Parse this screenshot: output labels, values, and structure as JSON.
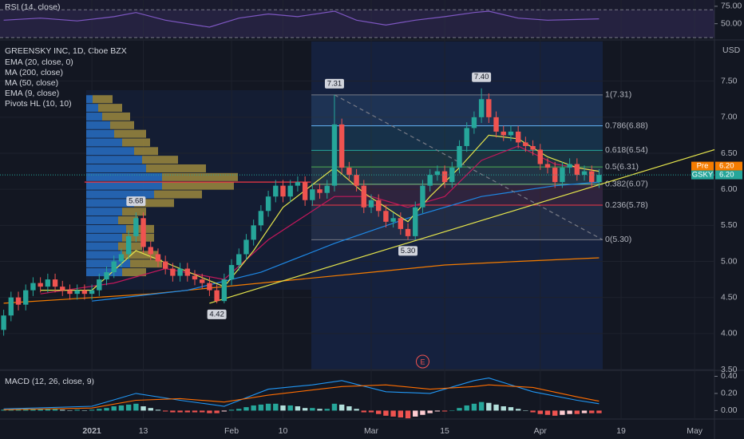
{
  "chart_data": {
    "type": "candlestick",
    "title": "GREENSKY INC, 1D, Cboe BZX",
    "currency": "USD",
    "up_color": "#26a69a",
    "down_color": "#ef5350",
    "open": [
      4.05,
      4.25,
      4.5,
      4.4,
      4.6,
      4.7,
      4.65,
      4.75,
      4.65,
      4.6,
      4.55,
      4.6,
      4.55,
      4.6,
      4.75,
      4.85,
      5.0,
      5.1,
      5.35,
      5.6,
      5.2,
      5.1,
      5.0,
      4.9,
      4.8,
      4.9,
      4.8,
      4.75,
      4.7,
      4.6,
      4.45,
      4.75,
      4.95,
      5.1,
      5.3,
      5.5,
      5.7,
      5.9,
      6.05,
      5.9,
      6.05,
      6.1,
      5.85,
      6.0,
      5.95,
      6.05,
      6.9,
      6.3,
      6.2,
      6.05,
      5.75,
      5.85,
      5.7,
      5.55,
      5.6,
      5.45,
      5.35,
      5.75,
      6.05,
      6.2,
      6.25,
      6.1,
      6.3,
      6.6,
      6.85,
      7.0,
      7.25,
      7.0,
      6.8,
      6.75,
      6.8,
      6.65,
      6.6,
      6.55,
      6.35,
      6.3,
      6.1,
      6.3,
      6.35,
      6.2,
      6.25,
      6.1
    ],
    "high": [
      4.33,
      4.58,
      4.58,
      4.68,
      4.78,
      4.78,
      4.83,
      4.83,
      4.73,
      4.68,
      4.68,
      4.68,
      4.68,
      4.83,
      4.93,
      5.08,
      5.18,
      5.43,
      5.68,
      5.68,
      5.28,
      5.18,
      5.08,
      4.98,
      4.98,
      4.98,
      4.88,
      4.83,
      4.78,
      4.68,
      4.83,
      5.03,
      5.18,
      5.38,
      5.58,
      5.78,
      5.98,
      6.13,
      6.13,
      6.13,
      6.18,
      6.18,
      6.08,
      6.08,
      6.13,
      7.31,
      6.98,
      6.38,
      6.28,
      6.13,
      5.93,
      5.93,
      5.78,
      5.68,
      5.68,
      5.53,
      5.83,
      6.13,
      6.28,
      6.33,
      6.33,
      6.38,
      6.68,
      6.93,
      7.08,
      7.4,
      7.33,
      7.08,
      6.88,
      6.88,
      6.88,
      6.73,
      6.68,
      6.63,
      6.43,
      6.38,
      6.38,
      6.43,
      6.43,
      6.33,
      6.33,
      6.28
    ],
    "low": [
      3.97,
      4.17,
      4.32,
      4.32,
      4.52,
      4.57,
      4.57,
      4.57,
      4.52,
      4.47,
      4.47,
      4.47,
      4.47,
      4.52,
      4.67,
      4.77,
      4.92,
      5.02,
      5.27,
      5.12,
      5.02,
      4.92,
      4.82,
      4.72,
      4.72,
      4.72,
      4.67,
      4.62,
      4.52,
      4.42,
      4.42,
      4.67,
      4.87,
      5.02,
      5.22,
      5.42,
      5.62,
      5.82,
      5.82,
      5.82,
      5.97,
      5.77,
      5.77,
      5.87,
      5.87,
      5.97,
      6.22,
      6.12,
      5.97,
      5.67,
      5.67,
      5.62,
      5.47,
      5.47,
      5.37,
      5.3,
      5.3,
      5.67,
      5.97,
      6.12,
      6.02,
      6.02,
      6.22,
      6.52,
      6.77,
      6.92,
      6.92,
      6.72,
      6.67,
      6.67,
      6.57,
      6.52,
      6.47,
      6.27,
      6.22,
      6.02,
      6.02,
      6.22,
      6.12,
      6.12,
      6.02,
      6.02
    ],
    "close": [
      4.25,
      4.5,
      4.4,
      4.6,
      4.7,
      4.65,
      4.75,
      4.65,
      4.6,
      4.55,
      4.6,
      4.55,
      4.6,
      4.75,
      4.85,
      5.0,
      5.1,
      5.35,
      5.6,
      5.2,
      5.1,
      5.0,
      4.9,
      4.8,
      4.9,
      4.8,
      4.75,
      4.7,
      4.6,
      4.45,
      4.75,
      4.95,
      5.1,
      5.3,
      5.5,
      5.7,
      5.9,
      6.05,
      5.9,
      6.05,
      6.1,
      5.85,
      6.0,
      5.95,
      6.05,
      6.9,
      6.3,
      6.2,
      6.05,
      5.75,
      5.85,
      5.7,
      5.55,
      5.6,
      5.45,
      5.35,
      5.75,
      6.05,
      6.2,
      6.25,
      6.1,
      6.3,
      6.6,
      6.85,
      7.0,
      7.25,
      7.0,
      6.8,
      6.75,
      6.8,
      6.65,
      6.6,
      6.55,
      6.35,
      6.3,
      6.1,
      6.3,
      6.35,
      6.2,
      6.25,
      6.1,
      6.2
    ],
    "xlim": [
      -0.5,
      96.7
    ],
    "xticks": [
      {
        "value": 12,
        "label": "2021"
      },
      {
        "value": 19,
        "label": "13"
      },
      {
        "value": 31,
        "label": "Feb"
      },
      {
        "value": 38,
        "label": "10"
      },
      {
        "value": 50,
        "label": "Mar"
      },
      {
        "value": 60,
        "label": "15"
      },
      {
        "value": 73,
        "label": "Apr"
      },
      {
        "value": 84,
        "label": "19"
      },
      {
        "value": 94,
        "label": "May"
      }
    ],
    "ylim": [
      3.5,
      8.05
    ],
    "yticks": [
      {
        "value": 3.5,
        "label": "3.50"
      },
      {
        "value": 4,
        "label": "4.00"
      },
      {
        "value": 4.5,
        "label": "4.50"
      },
      {
        "value": 5,
        "label": "5.00"
      },
      {
        "value": 5.5,
        "label": "5.50"
      },
      {
        "value": 6,
        "label": "6.00"
      },
      {
        "value": 6.5,
        "label": "6.50"
      },
      {
        "value": 7,
        "label": "7.00"
      },
      {
        "value": 7.5,
        "label": "7.50"
      }
    ],
    "overlays": [
      {
        "name": "EMA (20, close, 0)",
        "color": "#c2185b",
        "x": [
          5,
          15,
          22,
          30,
          36,
          45,
          50,
          55,
          60,
          65,
          70,
          75,
          81
        ],
        "values": [
          4.55,
          4.7,
          4.9,
          4.75,
          5.3,
          5.9,
          5.9,
          5.75,
          5.9,
          6.4,
          6.6,
          6.35,
          6.25
        ]
      },
      {
        "name": "MA (200, close)",
        "color": "#f57c00",
        "x": [
          0,
          20,
          40,
          50,
          60,
          70,
          81
        ],
        "values": [
          4.42,
          4.55,
          4.75,
          4.85,
          4.95,
          5.0,
          5.05
        ]
      },
      {
        "name": "MA (50, close)",
        "color": "#1e88e5",
        "x": [
          12,
          25,
          35,
          45,
          55,
          65,
          75,
          81
        ],
        "values": [
          4.45,
          4.6,
          4.85,
          5.25,
          5.6,
          5.9,
          6.05,
          6.1
        ]
      },
      {
        "name": "EMA (9, close)",
        "color": "#e5e54c",
        "x": [
          5,
          12,
          18,
          24,
          30,
          34,
          38,
          45,
          49,
          55,
          58,
          62,
          66,
          70,
          74,
          78,
          81
        ],
        "values": [
          4.6,
          4.6,
          5.15,
          4.9,
          4.65,
          5.15,
          5.75,
          6.3,
          5.95,
          5.55,
          5.9,
          6.3,
          6.75,
          6.7,
          6.45,
          6.3,
          6.25
        ]
      }
    ],
    "pivots": {
      "name": "Pivots HL (10, 10)",
      "x": [
        18,
        29,
        45,
        55,
        65
      ],
      "values": [
        5.68,
        4.42,
        7.31,
        5.3,
        7.4
      ],
      "value_labels": [
        "5.68",
        "4.42",
        "7.31",
        "5.30",
        "7.40"
      ]
    },
    "fib_levels": [
      {
        "value": 7.31,
        "label": "1(7.31)",
        "color": "#787b86"
      },
      {
        "value": 6.88,
        "label": "0.786(6.88)",
        "color": "#64b5f6"
      },
      {
        "value": 6.54,
        "label": "0.618(6.54)",
        "color": "#26a69a"
      },
      {
        "value": 6.31,
        "label": "0.5(6.31)",
        "color": "#4caf50"
      },
      {
        "value": 6.07,
        "label": "0.382(6.07)",
        "color": "#81c784"
      },
      {
        "value": 5.78,
        "label": "0.236(5.78)",
        "color": "#f23645"
      },
      {
        "value": 5.3,
        "label": "0(5.30)",
        "color": "#787b86"
      }
    ],
    "drawings": [
      {
        "x": [
          28,
          96.7
        ],
        "values": [
          4.42,
          6.55
        ],
        "color": "#e5e54c",
        "dashed": false
      },
      {
        "x": [
          11,
          41.8
        ],
        "values": [
          6.1,
          6.1
        ],
        "color": "#f23645",
        "dashed": false
      },
      {
        "x": [
          45,
          81.5
        ],
        "values": [
          7.31,
          5.3
        ],
        "color": "#787b86",
        "dashed": true
      }
    ],
    "price_tags": [
      {
        "name": "Pre",
        "value": 6.2,
        "label": "6.20",
        "color": "#f57c00"
      },
      {
        "name": "GSKY",
        "value": 6.2,
        "label": "6.20",
        "color": "#26a69a"
      }
    ],
    "volume_profile": {
      "prices": [
        7.25,
        7.13,
        7.01,
        6.89,
        6.77,
        6.65,
        6.53,
        6.41,
        6.29,
        6.17,
        6.05,
        5.93,
        5.81,
        5.69,
        5.57,
        5.45,
        5.33,
        5.21,
        5.09,
        4.97,
        4.85
      ],
      "up": [
        8,
        15,
        20,
        30,
        35,
        45,
        60,
        70,
        75,
        95,
        95,
        85,
        60,
        45,
        40,
        50,
        45,
        40,
        45,
        55,
        45
      ],
      "down": [
        25,
        30,
        35,
        30,
        40,
        35,
        30,
        45,
        75,
        95,
        90,
        60,
        50,
        30,
        25,
        35,
        40,
        30,
        45,
        40,
        30
      ],
      "up_color": "#2a7ad8",
      "down_color": "#b8a040"
    },
    "earnings": {
      "x": 57,
      "label": "E"
    },
    "rsi": {
      "name": "RSI (14, close)",
      "color": "#7e57c2",
      "ylim": [
        29,
        84
      ],
      "yticks": [
        {
          "value": 75,
          "label": "75.00"
        },
        {
          "value": 50,
          "label": "50.00"
        }
      ],
      "bands": [
        70,
        30
      ],
      "x": [
        0,
        5,
        10,
        15,
        18,
        22,
        28,
        32,
        36,
        40,
        45,
        48,
        52,
        56,
        60,
        64,
        66,
        70,
        74,
        78,
        81
      ],
      "values": [
        55,
        58,
        54,
        60,
        66,
        55,
        45,
        58,
        64,
        60,
        68,
        55,
        48,
        55,
        60,
        66,
        68,
        58,
        55,
        56,
        57
      ]
    },
    "macd": {
      "name": "MACD (12, 26, close, 9)",
      "ylim": [
        -0.08,
        0.46
      ],
      "yticks": [
        {
          "value": 0.4,
          "label": "0.40"
        },
        {
          "value": 0.2,
          "label": "0.20"
        },
        {
          "value": 0,
          "label": "0.00"
        }
      ],
      "histogram": [
        0.01,
        0.01,
        0.02,
        0.02,
        0.02,
        0.02,
        0.02,
        0.02,
        0.01,
        0.0,
        0.01,
        0.0,
        0.01,
        0.02,
        0.03,
        0.05,
        0.06,
        0.07,
        0.08,
        0.05,
        0.03,
        0.01,
        -0.01,
        -0.02,
        -0.02,
        -0.02,
        -0.02,
        -0.02,
        -0.03,
        -0.03,
        -0.01,
        0.01,
        0.02,
        0.04,
        0.06,
        0.07,
        0.08,
        0.08,
        0.06,
        0.06,
        0.05,
        0.03,
        0.03,
        0.02,
        0.02,
        0.08,
        0.07,
        0.05,
        0.02,
        -0.02,
        -0.02,
        -0.04,
        -0.06,
        -0.07,
        -0.08,
        -0.09,
        -0.07,
        -0.05,
        -0.03,
        -0.01,
        -0.01,
        0.0,
        0.03,
        0.06,
        0.08,
        0.1,
        0.09,
        0.07,
        0.05,
        0.04,
        0.02,
        0.0,
        -0.02,
        -0.04,
        -0.05,
        -0.06,
        -0.05,
        -0.04,
        -0.04,
        -0.03,
        -0.03,
        -0.03
      ],
      "macd_line": {
        "color": "#2196f3",
        "x": [
          0,
          12,
          18,
          24,
          30,
          36,
          42,
          46,
          52,
          58,
          64,
          66,
          72,
          78,
          81
        ],
        "values": [
          0.02,
          0.05,
          0.2,
          0.12,
          0.05,
          0.25,
          0.3,
          0.35,
          0.22,
          0.2,
          0.35,
          0.38,
          0.22,
          0.12,
          0.08
        ]
      },
      "signal_line": {
        "color": "#ff6d00",
        "x": [
          0,
          12,
          18,
          24,
          30,
          36,
          42,
          46,
          52,
          58,
          64,
          66,
          72,
          78,
          81
        ],
        "values": [
          0.01,
          0.03,
          0.12,
          0.14,
          0.1,
          0.18,
          0.24,
          0.28,
          0.3,
          0.25,
          0.28,
          0.3,
          0.27,
          0.16,
          0.11
        ]
      }
    }
  }
}
